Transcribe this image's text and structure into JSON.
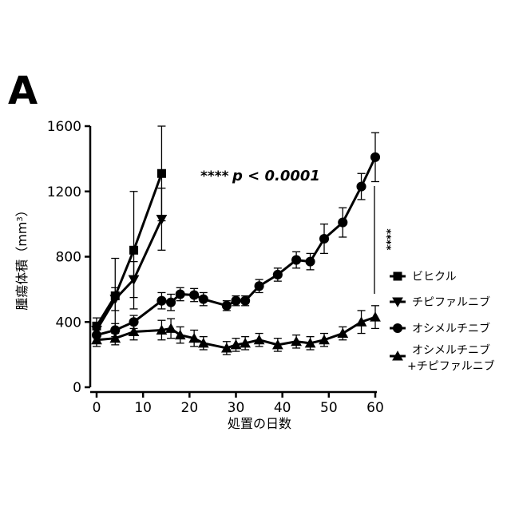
{
  "panel_letter": "A",
  "annotation": {
    "stars": "****",
    "p_text": "p < 0.0001",
    "side_stars": "****"
  },
  "chart_data": {
    "type": "line",
    "xlabel": "処置の日数",
    "ylabel_main": "腫瘍体積（mm",
    "ylabel_sup": "3",
    "ylabel_end": "）",
    "xlim": [
      0,
      60
    ],
    "ylim": [
      0,
      1600
    ],
    "x_ticks": [
      0,
      10,
      20,
      30,
      40,
      50,
      60
    ],
    "y_ticks": [
      0,
      400,
      800,
      1200,
      1600
    ],
    "grid": false,
    "legend_position": "right",
    "series": [
      {
        "name": "ビヒクル",
        "marker": "square",
        "x": [
          0,
          4,
          8,
          14
        ],
        "y": [
          375,
          560,
          840,
          1310
        ],
        "err": [
          50,
          230,
          360,
          290
        ]
      },
      {
        "name": "チピファルニブ",
        "marker": "triangle-down",
        "x": [
          0,
          4,
          8,
          14
        ],
        "y": [
          350,
          540,
          660,
          1030
        ],
        "err": [
          40,
          70,
          110,
          190
        ]
      },
      {
        "name": "オシメルチニブ",
        "marker": "circle",
        "x": [
          0,
          4,
          8,
          14,
          16,
          18,
          21,
          23,
          28,
          30,
          32,
          35,
          39,
          43,
          46,
          49,
          53,
          57,
          60
        ],
        "y": [
          320,
          350,
          400,
          530,
          520,
          570,
          565,
          540,
          500,
          530,
          530,
          620,
          690,
          780,
          770,
          910,
          1010,
          1230,
          1410
        ],
        "err": [
          40,
          40,
          40,
          50,
          50,
          40,
          40,
          40,
          30,
          30,
          30,
          40,
          40,
          50,
          50,
          90,
          90,
          80,
          150
        ]
      },
      {
        "name": "オシメルチニブ\n+チピファルニブ",
        "name_line1": "オシメルチニブ",
        "name_line2": "+チピファルニブ",
        "marker": "triangle-up",
        "x": [
          0,
          4,
          8,
          14,
          16,
          18,
          21,
          23,
          28,
          30,
          32,
          35,
          39,
          43,
          46,
          49,
          53,
          57,
          60
        ],
        "y": [
          290,
          300,
          340,
          350,
          360,
          320,
          300,
          270,
          240,
          260,
          270,
          290,
          260,
          280,
          270,
          290,
          330,
          400,
          430
        ],
        "err": [
          40,
          40,
          50,
          60,
          60,
          50,
          50,
          40,
          40,
          40,
          40,
          40,
          40,
          40,
          40,
          40,
          40,
          70,
          70
        ]
      }
    ]
  }
}
